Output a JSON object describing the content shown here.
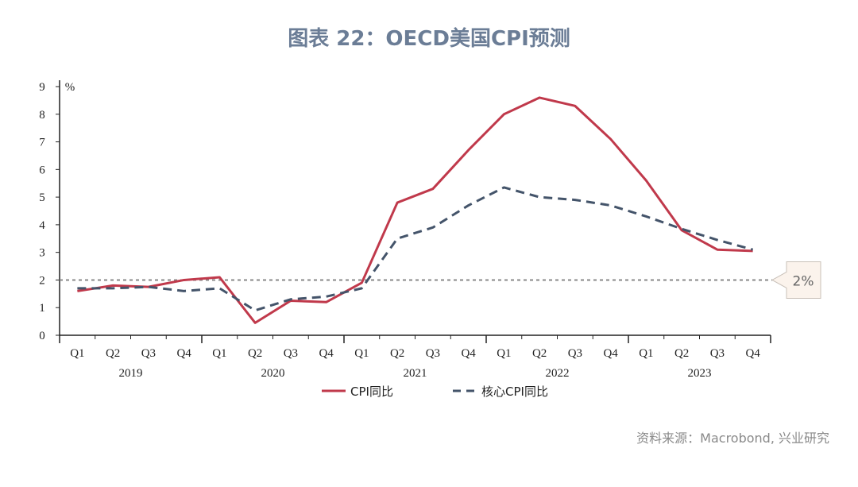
{
  "title": "图表 22：OECD美国CPI预测",
  "source": "资料来源：Macrobond, 兴业研究",
  "chart_data": {
    "type": "line",
    "ylabel": "%",
    "ylim": [
      0,
      9
    ],
    "yticks": [
      0,
      1,
      2,
      3,
      4,
      5,
      6,
      7,
      8,
      9
    ],
    "grid": false,
    "legend_position": "bottom",
    "categories": [
      "Q1",
      "Q2",
      "Q3",
      "Q4",
      "Q1",
      "Q2",
      "Q3",
      "Q4",
      "Q1",
      "Q2",
      "Q3",
      "Q4",
      "Q1",
      "Q2",
      "Q3",
      "Q4",
      "Q1",
      "Q2",
      "Q3",
      "Q4"
    ],
    "years": [
      "2019",
      "2020",
      "2021",
      "2022",
      "2023"
    ],
    "series": [
      {
        "name": "CPI同比",
        "color": "#c0394b",
        "style": "solid",
        "values": [
          1.6,
          1.8,
          1.75,
          2.0,
          2.1,
          0.45,
          1.25,
          1.2,
          1.9,
          4.8,
          5.3,
          6.7,
          8.0,
          8.6,
          8.3,
          7.1,
          5.6,
          3.8,
          3.1,
          3.05
        ]
      },
      {
        "name": "核心CPI同比",
        "color": "#44546a",
        "style": "dashed",
        "values": [
          1.7,
          1.7,
          1.75,
          1.6,
          1.7,
          0.9,
          1.3,
          1.4,
          1.7,
          3.5,
          3.9,
          4.7,
          5.35,
          5.0,
          4.9,
          4.7,
          4.3,
          3.85,
          3.45,
          3.1
        ]
      }
    ],
    "reference_line": {
      "value": 2,
      "label": "2%",
      "color": "#888888"
    }
  }
}
